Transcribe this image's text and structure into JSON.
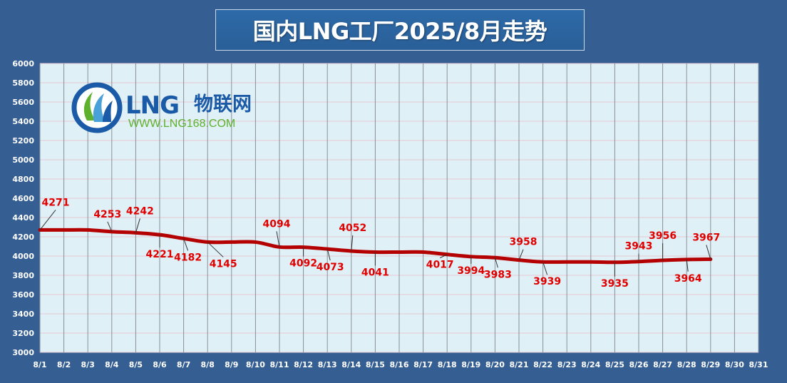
{
  "title": "国内LNG工厂2025/8月走势",
  "logo": {
    "brand": "LNG",
    "brand_cn": "物联网",
    "url": "WWW.LNG168.COM"
  },
  "colors": {
    "background": "#355f93",
    "plot_background": "#dff0f6",
    "line": "#b40000",
    "label": "#e00000",
    "logo_blue": "#1a5aa6",
    "logo_green": "#5fb12d"
  },
  "chart_data": {
    "type": "line",
    "categories": [
      "8/1",
      "8/2",
      "8/3",
      "8/4",
      "8/5",
      "8/6",
      "8/7",
      "8/8",
      "8/9",
      "8/10",
      "8/11",
      "8/12",
      "8/13",
      "8/14",
      "8/15",
      "8/16",
      "8/17",
      "8/18",
      "8/19",
      "8/20",
      "8/21",
      "8/22",
      "8/23",
      "8/24",
      "8/25",
      "8/26",
      "8/27",
      "8/28",
      "8/29",
      "8/30",
      "8/31"
    ],
    "series": [
      {
        "values": [
          4271,
          4271,
          4271,
          4253,
          4242,
          4221,
          4182,
          4145,
          4145,
          4145,
          4094,
          4092,
          4073,
          4052,
          4041,
          4041,
          4041,
          4017,
          3994,
          3983,
          3958,
          3939,
          3939,
          3939,
          3935,
          3943,
          3956,
          3964,
          3967,
          null,
          null
        ]
      }
    ],
    "labels": [
      {
        "category": "8/1",
        "value": 4271,
        "text": "4271"
      },
      {
        "category": "8/4",
        "value": 4253,
        "text": "4253"
      },
      {
        "category": "8/5",
        "value": 4242,
        "text": "4242"
      },
      {
        "category": "8/6",
        "value": 4221,
        "text": "4221"
      },
      {
        "category": "8/7",
        "value": 4182,
        "text": "4182"
      },
      {
        "category": "8/8",
        "value": 4145,
        "text": "4145"
      },
      {
        "category": "8/11",
        "value": 4094,
        "text": "4094"
      },
      {
        "category": "8/12",
        "value": 4092,
        "text": "4092"
      },
      {
        "category": "8/13",
        "value": 4073,
        "text": "4073"
      },
      {
        "category": "8/14",
        "value": 4052,
        "text": "4052"
      },
      {
        "category": "8/15",
        "value": 4041,
        "text": "4041"
      },
      {
        "category": "8/18",
        "value": 4017,
        "text": "4017"
      },
      {
        "category": "8/19",
        "value": 3994,
        "text": "3994"
      },
      {
        "category": "8/20",
        "value": 3983,
        "text": "3983"
      },
      {
        "category": "8/21",
        "value": 3958,
        "text": "3958"
      },
      {
        "category": "8/22",
        "value": 3939,
        "text": "3939"
      },
      {
        "category": "8/25",
        "value": 3935,
        "text": "3935"
      },
      {
        "category": "8/26",
        "value": 3943,
        "text": "3943"
      },
      {
        "category": "8/27",
        "value": 3956,
        "text": "3956"
      },
      {
        "category": "8/28",
        "value": 3964,
        "text": "3964"
      },
      {
        "category": "8/29",
        "value": 3967,
        "text": "3967"
      }
    ],
    "ylim": [
      3000,
      6000
    ],
    "yticks": [
      "3000",
      "3200",
      "3400",
      "3600",
      "3800",
      "4000",
      "4200",
      "4400",
      "4600",
      "4800",
      "5000",
      "5200",
      "5400",
      "5600",
      "5800",
      "6000"
    ],
    "xlabel": "",
    "ylabel": "",
    "grid": true,
    "legend": "none"
  }
}
